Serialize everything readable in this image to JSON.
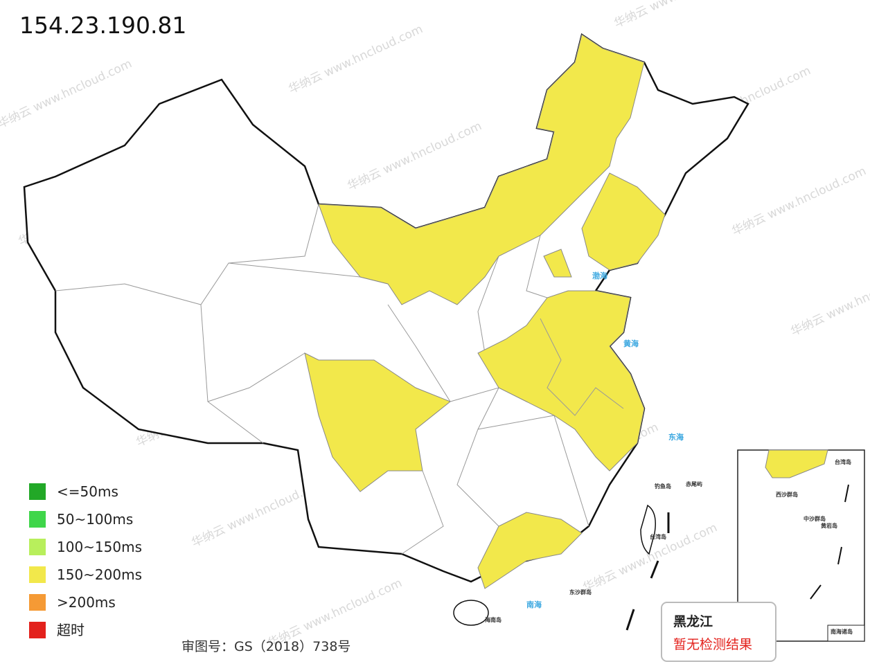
{
  "header": {
    "title": "154.23.190.81"
  },
  "legend": [
    {
      "label": "<=50ms",
      "color": "#22a827"
    },
    {
      "label": "50~100ms",
      "color": "#3fd64a"
    },
    {
      "label": "100~150ms",
      "color": "#b8ef5c"
    },
    {
      "label": "150~200ms",
      "color": "#f2e84b"
    },
    {
      "label": ">200ms",
      "color": "#f59a35"
    },
    {
      "label": "超时",
      "color": "#e3211c"
    }
  ],
  "map": {
    "seas": [
      "渤海",
      "黄海",
      "东海",
      "南海"
    ],
    "islands": [
      "钓鱼岛",
      "赤尾屿",
      "台湾岛",
      "海南岛",
      "东沙群岛"
    ],
    "inset": {
      "title": "南海诸岛",
      "labels": [
        "西沙群岛",
        "中沙群岛",
        "黄岩岛",
        "台湾岛"
      ]
    }
  },
  "note": "审图号：GS（2018）738号",
  "tooltip": {
    "province": "黑龙江",
    "status": "暂无检测结果"
  },
  "watermark": "华纳云 www.hncloud.com"
}
